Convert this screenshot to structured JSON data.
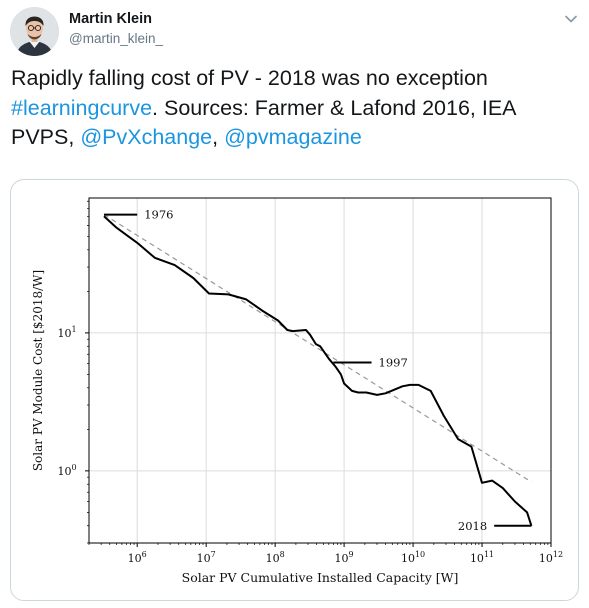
{
  "tweet": {
    "author_name": "Martin Klein",
    "author_handle": "@martin_klein_",
    "text_part1": "Rapidly falling cost of PV - 2018 was no exception",
    "hashtag": "#learningcurve",
    "text_part2": ". Sources: Farmer & Lafond 2016, IEA PVPS, ",
    "mention1": "@PvXchange",
    "text_part3": ", ",
    "mention2": "@pvmagazine",
    "link_color": "#1b95e0",
    "caret_icon": "chevron-down-icon"
  },
  "chart_data": {
    "type": "line",
    "xlabel": "Solar PV Cumulative Installed Capacity [W]",
    "ylabel": "Solar PV Module Cost [$2018/W]",
    "x_scale": "log",
    "y_scale": "log",
    "xlim": [
      200000,
      1000000000000
    ],
    "ylim": [
      0.3,
      95
    ],
    "x_ticks": [
      {
        "value": 1000000,
        "base": "10",
        "exp": "6"
      },
      {
        "value": 10000000,
        "base": "10",
        "exp": "7"
      },
      {
        "value": 100000000,
        "base": "10",
        "exp": "8"
      },
      {
        "value": 1000000000,
        "base": "10",
        "exp": "9"
      },
      {
        "value": 10000000000,
        "base": "10",
        "exp": "10"
      },
      {
        "value": 100000000000,
        "base": "10",
        "exp": "11"
      },
      {
        "value": 1000000000000,
        "base": "10",
        "exp": "12"
      }
    ],
    "y_ticks": [
      {
        "value": 1,
        "base": "10",
        "exp": "0"
      },
      {
        "value": 10,
        "base": "10",
        "exp": "1"
      }
    ],
    "grid": true,
    "series": [
      {
        "style": "solid",
        "x": [
          330000,
          500000,
          1000000,
          1800000,
          3500000,
          6500000,
          11000000,
          21000000,
          38000000,
          65000000,
          110000000,
          150000000,
          180000000,
          280000000,
          320000000,
          390000000,
          450000000,
          600000000,
          750000000,
          900000000,
          1000000000,
          1300000000,
          1600000000,
          2100000000,
          3000000000,
          4000000000,
          7000000000,
          9000000000,
          12000000000,
          18000000000,
          28000000000,
          45000000000,
          70000000000,
          100000000000,
          140000000000,
          200000000000,
          300000000000,
          450000000000,
          520000000000
        ],
        "y": [
          70,
          58,
          45,
          35,
          31,
          25,
          19.3,
          19,
          17.5,
          14.5,
          12.3,
          10.5,
          10.3,
          10.5,
          9.7,
          8.3,
          8.0,
          6.5,
          5.7,
          5.0,
          4.3,
          3.8,
          3.7,
          3.7,
          3.55,
          3.65,
          4.1,
          4.2,
          4.2,
          3.8,
          2.5,
          1.7,
          1.5,
          0.82,
          0.85,
          0.75,
          0.6,
          0.5,
          0.4
        ]
      },
      {
        "style": "dashed",
        "x": [
          330000,
          520000000000
        ],
        "y": [
          72,
          0.83
        ]
      }
    ],
    "annotations": [
      {
        "text": "1976",
        "x": 330000,
        "y": 72,
        "tick_end": 1000000
      },
      {
        "text": "1997",
        "x": 700000000,
        "y": 6.1,
        "tick_end": 2500000000
      },
      {
        "text": "2018",
        "x": 520000000000,
        "y": 0.4,
        "tick_end": 150000000000
      }
    ]
  }
}
